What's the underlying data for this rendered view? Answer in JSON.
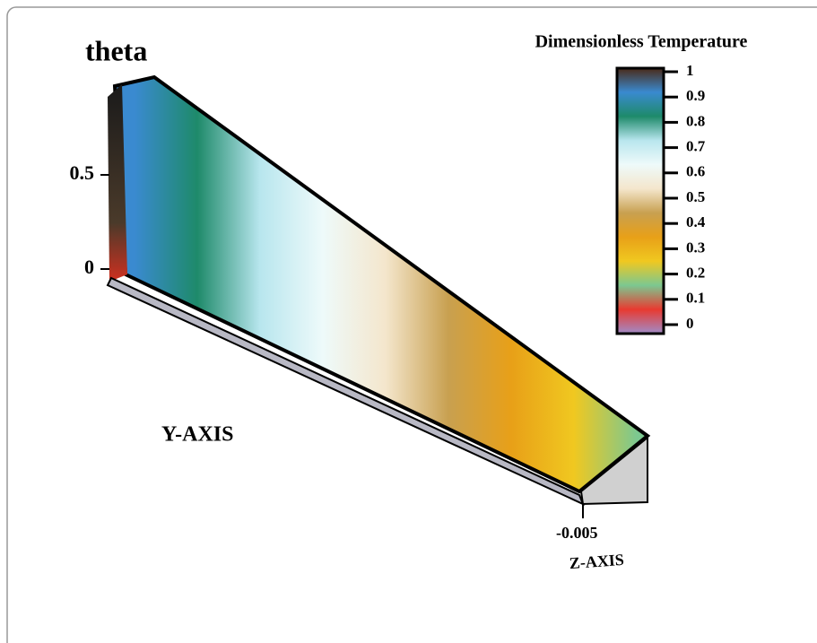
{
  "chart_data": {
    "type": "surface3d",
    "theta_label": "theta",
    "theta_lim": [
      0,
      1
    ],
    "theta_ticks": [
      0,
      0.5
    ],
    "ylabel": "Y-AXIS",
    "zlabel": "Z-AXIS",
    "zticks": [
      -0.005
    ],
    "colorbar_title": "Dimensionless Temperature",
    "colorbar_lim": [
      0,
      1
    ],
    "colorbar_ticks": [
      0,
      0.1,
      0.2,
      0.3,
      0.4,
      0.5,
      0.6,
      0.7,
      0.8,
      0.9,
      1
    ],
    "colormap": [
      "#a08cc8",
      "#e83a30",
      "#7cc890",
      "#f0c820",
      "#e8a018",
      "#c8a050",
      "#f4e6cc",
      "#eefafa",
      "#b8e6ee",
      "#1e8a6a",
      "#3a8ad0",
      "#4a2a18"
    ]
  }
}
